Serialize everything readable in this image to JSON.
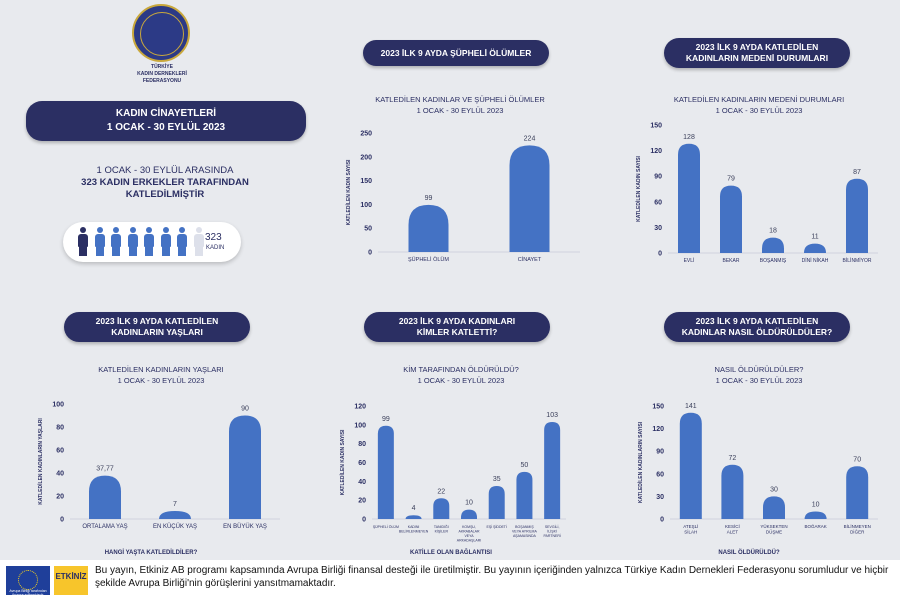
{
  "header": {
    "logo_text": "TÜRKİYE\nKADIN DERNEKLERİ\nFEDERASYONU",
    "title_line1": "KADIN CİNAYETLERİ",
    "title_line2": "1 OCAK - 30 EYLÜL 2023"
  },
  "summary": {
    "line1": "1 OCAK - 30 EYLÜL ARASINDA",
    "line2": "323 KADIN ERKEKLER TARAFINDAN",
    "line3": "KATLEDİLMİŞTİR",
    "count": "323",
    "unit": "KADIN"
  },
  "colors": {
    "bar": "#4472c4",
    "pill": "#2b2f63",
    "person_dark": "#2b2f63",
    "person_mid": "#4472c4",
    "person_light": "#dde0ea"
  },
  "chart_data": [
    {
      "type": "bar",
      "pill": "2023 İLK 9 AYDA ŞÜPHELİ ÖLÜMLER",
      "title": "KATLEDİLEN KADINLAR VE ŞÜPHELİ ÖLÜMLER",
      "subtitle": "1 OCAK - 30 EYLÜL 2023",
      "ylabel": "KATLEDİLEN KADIN SAYISI",
      "xlabel": "",
      "ylim": [
        0,
        250
      ],
      "ticks": [
        0,
        50,
        100,
        150,
        200,
        250
      ],
      "categories": [
        "ŞÜPHELİ ÖLÜM",
        "CİNAYET"
      ],
      "values": [
        99,
        224
      ],
      "value_labels": [
        "99",
        "224"
      ]
    },
    {
      "type": "bar",
      "pill": "2023 İLK 9 AYDA KATLEDİLEN KADINLARIN MEDENİ DURUMLARI",
      "title": "KATLEDİLEN KADINLARIN MEDENİ DURUMLARI",
      "subtitle": "1 OCAK - 30 EYLÜL 2023",
      "ylabel": "KATLEDİLEN KADIN SAYISI",
      "xlabel": "",
      "ylim": [
        0,
        150
      ],
      "ticks": [
        0,
        30,
        60,
        90,
        120,
        150
      ],
      "categories": [
        "EVLİ",
        "BEKAR",
        "BOŞANMIŞ",
        "DİNİ NİKAH",
        "BİLİNMİYOR"
      ],
      "values": [
        128,
        79,
        18,
        11,
        87
      ],
      "value_labels": [
        "128",
        "79",
        "18",
        "11",
        "87"
      ]
    },
    {
      "type": "bar",
      "pill": "2023 İLK 9 AYDA KATLEDİLEN KADINLARIN YAŞLARI",
      "title": "KATLEDİLEN KADINLARIN YAŞLARI",
      "subtitle": "1 OCAK - 30 EYLÜL 2023",
      "ylabel": "KATLEDİLEN KADINLARIN YAŞLARI",
      "xlabel": "HANGİ YAŞTA KATLEDİLDİLER?",
      "ylim": [
        0,
        100
      ],
      "ticks": [
        0,
        20,
        40,
        60,
        80,
        100
      ],
      "categories": [
        "ORTALAMA YAŞ",
        "EN KÜÇÜK YAŞ",
        "EN BÜYÜK YAŞ"
      ],
      "values": [
        37.77,
        7,
        90
      ],
      "value_labels": [
        "37,77",
        "7",
        "90"
      ]
    },
    {
      "type": "bar",
      "pill": "2023 İLK 9 AYDA KADINLARI KİMLER KATLETTİ?",
      "title": "KİM TARAFINDAN ÖLDÜRÜLDÜ?",
      "subtitle": "1 OCAK - 30 EYLÜL 2023",
      "ylabel": "KATLEDİLEN KADIN SAYISI",
      "xlabel": "KATİLLE OLAN BAĞLANTISI",
      "ylim": [
        0,
        120
      ],
      "ticks": [
        0,
        20,
        40,
        60,
        80,
        100,
        120
      ],
      "categories": [
        "ŞÜPHELİ ÖLÜM",
        "KADINI BELİRLENMEYEN",
        "TANIDIĞI KİŞİLER",
        "KOMŞU, AKRABALAR VEYA ARKADAŞLARI",
        "EŞİ ŞİDDETİ",
        "BOŞANMIŞ VEYA AYRILMA AŞAMASINDA",
        "SEVGİLİ, İLİŞKİ PARTNERİ"
      ],
      "values": [
        99,
        4,
        22,
        10,
        35,
        50,
        103
      ],
      "value_labels": [
        "99",
        "4",
        "22",
        "10",
        "35",
        "50",
        "103"
      ]
    },
    {
      "type": "bar",
      "pill": "2023 İLK 9 AYDA KATLEDİLEN KADINLAR NASIL ÖLDÜRÜLDÜLER?",
      "title": "NASIL ÖLDÜRÜLDÜLER?",
      "subtitle": "1 OCAK - 30 EYLÜL 2023",
      "ylabel": "KATLEDİLEN KADINLARIN SAYISI",
      "xlabel": "NASIL ÖLDÜRÜLDÜ?",
      "ylim": [
        0,
        150
      ],
      "ticks": [
        0,
        30,
        60,
        90,
        120,
        150
      ],
      "categories": [
        "ATEŞLİ SİLAH",
        "KESİCİ ALET",
        "YÜKSEKTEN DÜŞME",
        "BOĞARAK",
        "BİLİNMEYEN DİĞER"
      ],
      "values": [
        141,
        72,
        30,
        10,
        70
      ],
      "value_labels": [
        "141",
        "72",
        "30",
        "10",
        "70"
      ]
    }
  ],
  "footer": {
    "eu_caption": "Avrupa Birliği tarafından finanse edilmektedir",
    "etkiniz": "ETKİNİZ",
    "text": "Bu yayın, Etkiniz AB programı kapsamında Avrupa Birliği finansal desteği ile üretilmiştir. Bu yayının içeriğinden yalnızca Türkiye Kadın Dernekleri Federasyonu sorumludur ve hiçbir şekilde Avrupa Birliği'nin görüşlerini yansıtmamaktadır."
  }
}
